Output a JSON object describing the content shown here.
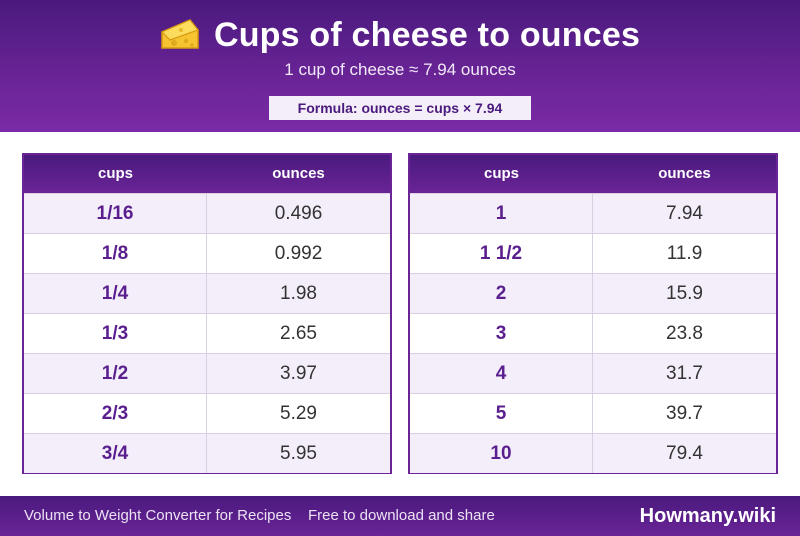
{
  "header": {
    "title": "Cups of cheese to ounces",
    "subtitle": "1 cup of cheese ≈ 7.94 ounces",
    "formula": "Formula: ounces = cups × 7.94",
    "icon": "cheese-icon"
  },
  "tables": [
    {
      "col_cups": "cups",
      "col_ounces": "ounces",
      "rows": [
        {
          "cups": "1/16",
          "ounces": "0.496"
        },
        {
          "cups": "1/8",
          "ounces": "0.992"
        },
        {
          "cups": "1/4",
          "ounces": "1.98"
        },
        {
          "cups": "1/3",
          "ounces": "2.65"
        },
        {
          "cups": "1/2",
          "ounces": "3.97"
        },
        {
          "cups": "2/3",
          "ounces": "5.29"
        },
        {
          "cups": "3/4",
          "ounces": "5.95"
        }
      ]
    },
    {
      "col_cups": "cups",
      "col_ounces": "ounces",
      "rows": [
        {
          "cups": "1",
          "ounces": "7.94"
        },
        {
          "cups": "1 1/2",
          "ounces": "11.9"
        },
        {
          "cups": "2",
          "ounces": "15.9"
        },
        {
          "cups": "3",
          "ounces": "23.8"
        },
        {
          "cups": "4",
          "ounces": "31.7"
        },
        {
          "cups": "5",
          "ounces": "39.7"
        },
        {
          "cups": "10",
          "ounces": "79.4"
        }
      ]
    }
  ],
  "footer": {
    "left": "Volume to Weight Converter for Recipes",
    "middle": "Free to download and share",
    "brand": "Howmany.wiki"
  },
  "colors": {
    "primary": "#6a2496",
    "dark": "#4a1a7e",
    "row_alt": "#f3eefa"
  }
}
